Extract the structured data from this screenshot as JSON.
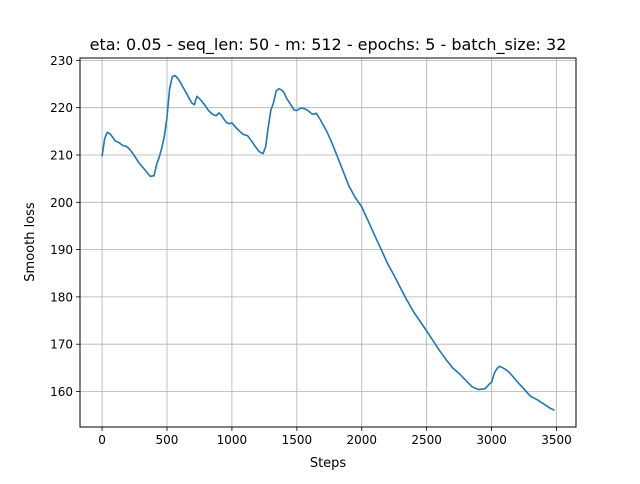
{
  "chart_data": {
    "type": "line",
    "title": "eta: 0.05 - seq_len: 50 - m: 512 - epochs: 5 - batch_size: 32",
    "xlabel": "Steps",
    "ylabel": "Smooth loss",
    "xlim": [
      -170,
      3650
    ],
    "ylim": [
      152.5,
      230.5
    ],
    "xticks": [
      0,
      500,
      1000,
      1500,
      2000,
      2500,
      3000,
      3500
    ],
    "yticks": [
      160,
      170,
      180,
      190,
      200,
      210,
      220,
      230
    ],
    "grid": true,
    "line_color": "#1f77b4",
    "series": [
      {
        "x": [
          0,
          20,
          40,
          60,
          80,
          100,
          130,
          160,
          190,
          220,
          250,
          280,
          310,
          340,
          370,
          400,
          420,
          440,
          460,
          480,
          500,
          520,
          540,
          560,
          580,
          600,
          630,
          660,
          690,
          710,
          730,
          760,
          790,
          820,
          850,
          880,
          900,
          920,
          940,
          960,
          980,
          1000,
          1030,
          1060,
          1090,
          1120,
          1150,
          1180,
          1210,
          1240,
          1260,
          1280,
          1300,
          1320,
          1340,
          1360,
          1380,
          1400,
          1420,
          1450,
          1480,
          1500,
          1530,
          1560,
          1590,
          1620,
          1650,
          1680,
          1700,
          1730,
          1760,
          1800,
          1850,
          1900,
          1950,
          2000,
          2050,
          2100,
          2150,
          2200,
          2250,
          2300,
          2350,
          2400,
          2450,
          2500,
          2550,
          2600,
          2650,
          2700,
          2750,
          2800,
          2850,
          2900,
          2950,
          2980,
          3000,
          3020,
          3040,
          3060,
          3080,
          3100,
          3130,
          3160,
          3200,
          3250,
          3300,
          3350,
          3400,
          3450,
          3480
        ],
        "y": [
          209.8,
          213.5,
          214.8,
          214.5,
          213.8,
          213.0,
          212.6,
          212.0,
          211.8,
          211.0,
          209.8,
          208.5,
          207.5,
          206.5,
          205.5,
          205.6,
          208.0,
          209.5,
          211.5,
          214.0,
          218.0,
          224.0,
          226.5,
          226.8,
          226.3,
          225.5,
          224.0,
          222.5,
          221.0,
          220.6,
          222.4,
          221.6,
          220.6,
          219.4,
          218.6,
          218.3,
          218.9,
          218.4,
          217.5,
          216.8,
          216.6,
          216.8,
          215.8,
          215.0,
          214.3,
          214.1,
          213.0,
          211.8,
          210.7,
          210.3,
          211.8,
          216.0,
          219.5,
          221.0,
          223.5,
          224.0,
          223.8,
          223.2,
          222.0,
          220.8,
          219.5,
          219.4,
          219.9,
          219.8,
          219.3,
          218.6,
          218.8,
          217.5,
          216.5,
          215.0,
          213.2,
          210.5,
          207.0,
          203.5,
          201.0,
          199.0,
          196.0,
          193.0,
          190.0,
          187.0,
          184.5,
          181.8,
          179.2,
          176.8,
          174.8,
          172.8,
          170.7,
          168.6,
          166.7,
          165.0,
          163.8,
          162.4,
          161.0,
          160.4,
          160.6,
          161.5,
          162.0,
          163.8,
          164.8,
          165.3,
          165.1,
          164.8,
          164.2,
          163.3,
          162.0,
          160.5,
          159.0,
          158.3,
          157.4,
          156.5,
          156.1
        ]
      }
    ]
  }
}
